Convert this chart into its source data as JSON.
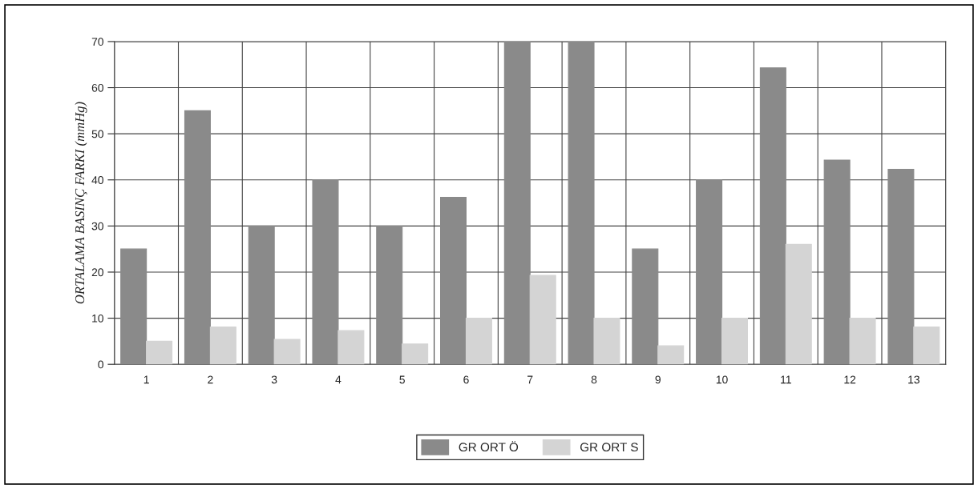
{
  "chart_data": {
    "type": "bar",
    "ylabel": "ORTALAMA BASINÇ FARKI (mmHg)",
    "categories": [
      "1",
      "2",
      "3",
      "4",
      "5",
      "6",
      "7",
      "8",
      "9",
      "10",
      "11",
      "12",
      "13"
    ],
    "series": [
      {
        "name": "GR ORT Ö",
        "color": "#8a8a8a",
        "values": [
          25,
          55,
          30,
          40,
          30,
          36.2,
          70,
          70,
          25,
          40,
          64.3,
          44.3,
          42.3
        ]
      },
      {
        "name": "GR ORT S",
        "color": "#d4d4d4",
        "values": [
          5,
          8.1,
          5.4,
          7.3,
          4.4,
          10,
          19.3,
          10,
          4,
          10,
          26,
          10,
          8.1
        ]
      }
    ],
    "ylim": [
      0,
      70
    ],
    "yticks": [
      0,
      10,
      20,
      30,
      40,
      50,
      60,
      70
    ],
    "grid": true,
    "legend": "bottom"
  }
}
